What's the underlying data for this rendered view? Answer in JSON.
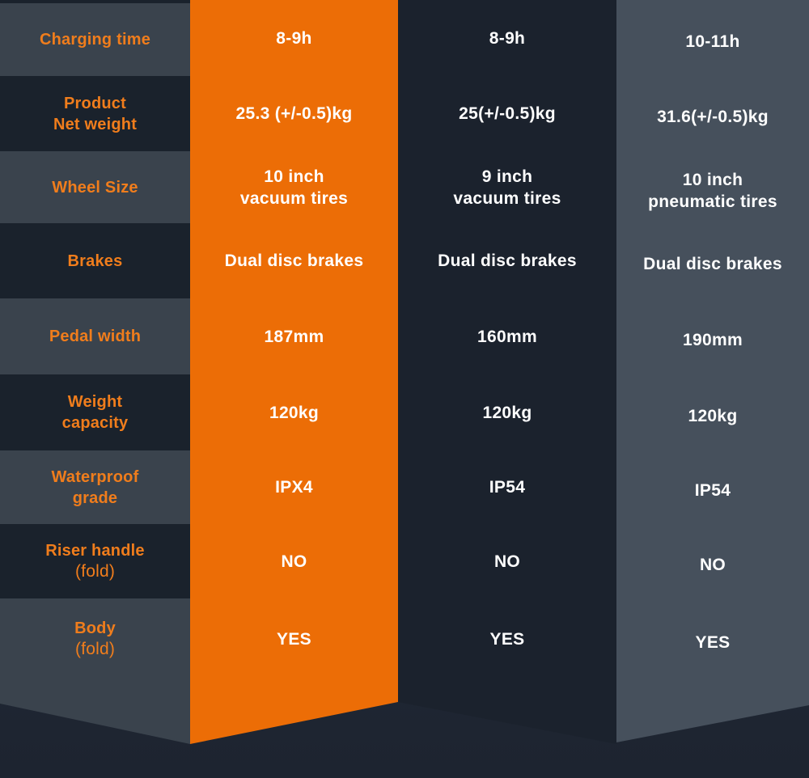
{
  "colors": {
    "accent_orange": "#ec6d06",
    "label_text_orange": "#f07d1c",
    "value_text": "#ffffff",
    "label_band_light": "#3a434d",
    "label_band_dark": "#1a222c",
    "model2_column_bg": "#1b222d",
    "model3_column_bg": "#46505c",
    "page_background": "#222a37"
  },
  "table": {
    "rows": [
      {
        "label": [
          "Charging time"
        ],
        "col1": [
          "8-9h"
        ],
        "col2": [
          "8-9h"
        ],
        "col3": [
          "10-11h"
        ]
      },
      {
        "label": [
          "Product",
          "Net weight"
        ],
        "col1": [
          "25.3 (+/-0.5)kg"
        ],
        "col2": [
          "25(+/-0.5)kg"
        ],
        "col3": [
          "31.6(+/-0.5)kg"
        ]
      },
      {
        "label": [
          "Wheel Size"
        ],
        "col1": [
          "10 inch",
          "vacuum tires"
        ],
        "col2": [
          "9 inch",
          "vacuum tires"
        ],
        "col3": [
          "10 inch",
          "pneumatic tires"
        ]
      },
      {
        "label": [
          "Brakes"
        ],
        "col1": [
          "Dual disc brakes"
        ],
        "col2": [
          "Dual disc brakes"
        ],
        "col3": [
          "Dual disc brakes"
        ]
      },
      {
        "label": [
          "Pedal width"
        ],
        "col1": [
          "187mm"
        ],
        "col2": [
          "160mm"
        ],
        "col3": [
          "190mm"
        ]
      },
      {
        "label": [
          "Weight",
          "capacity"
        ],
        "col1": [
          "120kg"
        ],
        "col2": [
          "120kg"
        ],
        "col3": [
          "120kg"
        ]
      },
      {
        "label": [
          "Waterproof",
          "grade"
        ],
        "col1": [
          "IPX4"
        ],
        "col2": [
          "IP54"
        ],
        "col3": [
          "IP54"
        ]
      },
      {
        "label": [
          "Riser handle",
          "(fold)"
        ],
        "col1": [
          "NO"
        ],
        "col2": [
          "NO"
        ],
        "col3": [
          "NO"
        ]
      },
      {
        "label": [
          "Body",
          "(fold)"
        ],
        "col1": [
          "YES"
        ],
        "col2": [
          "YES"
        ],
        "col3": [
          "YES"
        ]
      }
    ]
  }
}
